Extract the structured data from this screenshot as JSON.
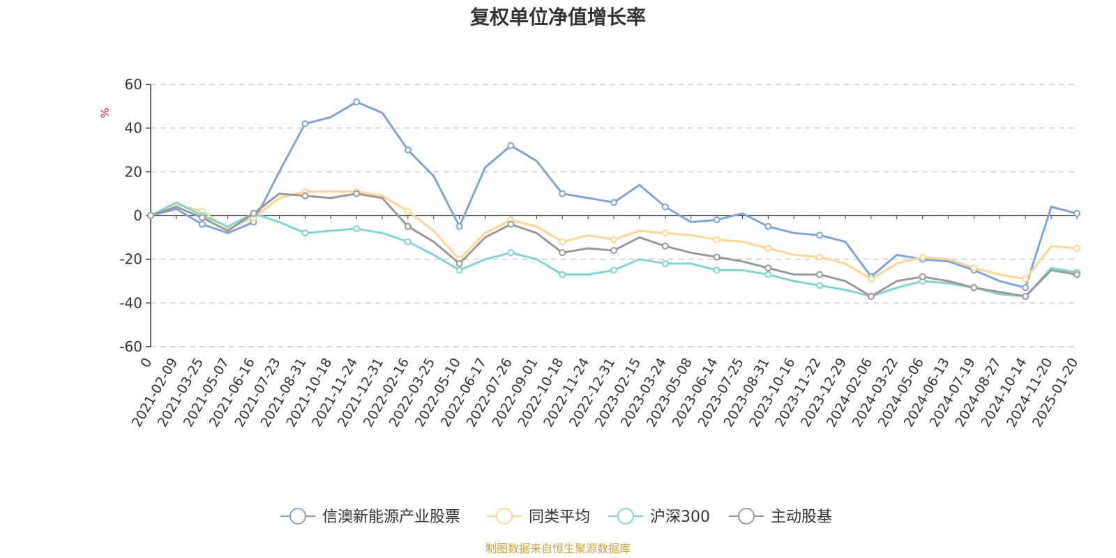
{
  "chart_data": {
    "type": "line",
    "title": "复权单位净值增长率",
    "ylabel": "%",
    "ylim": [
      -60,
      60
    ],
    "yticks": [
      60,
      40,
      20,
      0,
      -20,
      -40,
      -60
    ],
    "grid": true,
    "legend_position": "bottom",
    "x_origin_label": "0",
    "x": [
      "2021-02-09",
      "2021-03-25",
      "2021-05-07",
      "2021-06-16",
      "2021-07-23",
      "2021-08-31",
      "2021-10-18",
      "2021-11-24",
      "2021-12-31",
      "2022-02-16",
      "2022-03-25",
      "2022-05-10",
      "2022-06-17",
      "2022-07-26",
      "2022-09-01",
      "2022-10-18",
      "2022-11-24",
      "2022-12-31",
      "2023-02-15",
      "2023-03-24",
      "2023-05-08",
      "2023-06-14",
      "2023-07-25",
      "2023-08-31",
      "2023-10-16",
      "2023-11-22",
      "2023-12-29",
      "2024-02-06",
      "2024-03-22",
      "2024-05-06",
      "2024-06-13",
      "2024-07-19",
      "2024-08-27",
      "2024-10-14",
      "2024-11-20",
      "2025-01-20"
    ],
    "series": [
      {
        "name": "信澳新能源产业股票",
        "color": "#7fa4d8",
        "values": [
          3,
          -4,
          -8,
          -3,
          20,
          42,
          45,
          52,
          47,
          30,
          18,
          -5,
          22,
          32,
          25,
          10,
          8,
          6,
          14,
          4,
          -3,
          -2,
          1,
          -5,
          -8,
          -9,
          -12,
          -28,
          -18,
          -20,
          -21,
          -25,
          -30,
          -33,
          4,
          1
        ]
      },
      {
        "name": "同类平均",
        "color": "#ffd591",
        "values": [
          5,
          2,
          -6,
          -1,
          8,
          11,
          11,
          11,
          9,
          2,
          -7,
          -20,
          -8,
          -2,
          -5,
          -12,
          -9,
          -11,
          -7,
          -8,
          -9,
          -11,
          -12,
          -15,
          -18,
          -19,
          -22,
          -29,
          -22,
          -19,
          -20,
          -24,
          -27,
          -29,
          -14,
          -15
        ]
      },
      {
        "name": "沪深300",
        "color": "#7fd4d4",
        "values": [
          6,
          0,
          -5,
          1,
          -3,
          -8,
          -7,
          -6,
          -8,
          -12,
          -18,
          -25,
          -20,
          -17,
          -20,
          -27,
          -27,
          -25,
          -20,
          -22,
          -22,
          -25,
          -25,
          -27,
          -30,
          -32,
          -34,
          -37,
          -33,
          -30,
          -31,
          -33,
          -36,
          -37,
          -24,
          -26
        ]
      },
      {
        "name": "主动股基",
        "color": "#999999",
        "values": [
          4,
          -1,
          -7,
          1,
          10,
          9,
          8,
          10,
          8,
          -5,
          -12,
          -22,
          -10,
          -4,
          -8,
          -17,
          -15,
          -16,
          -10,
          -14,
          -17,
          -19,
          -21,
          -24,
          -27,
          -27,
          -30,
          -37,
          -30,
          -28,
          -30,
          -33,
          -35,
          -37,
          -25,
          -27
        ]
      }
    ]
  },
  "source_text": "制图数据来自恒生聚源数据库"
}
